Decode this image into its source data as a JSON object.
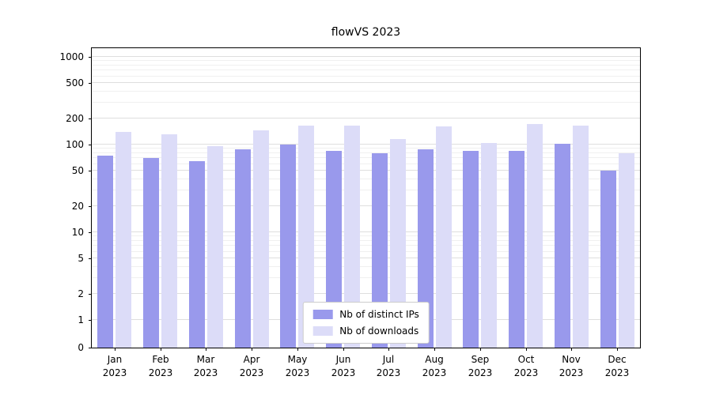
{
  "chart_data": {
    "type": "bar",
    "title": "flowVS 2023",
    "categories": [
      "Jan",
      "Feb",
      "Mar",
      "Apr",
      "May",
      "Jun",
      "Jul",
      "Aug",
      "Sep",
      "Oct",
      "Nov",
      "Dec"
    ],
    "year_label": "2023",
    "series": [
      {
        "name": "Nb of distinct IPs",
        "color": "#9999ec",
        "values": [
          75,
          70,
          65,
          88,
          100,
          85,
          80,
          88,
          85,
          85,
          103,
          50
        ]
      },
      {
        "name": "Nb of downloads",
        "color": "#dcdcf8",
        "values": [
          140,
          130,
          95,
          145,
          165,
          165,
          115,
          160,
          105,
          170,
          165,
          80
        ]
      }
    ],
    "yscale": "symlog",
    "yticks": [
      0,
      1,
      2,
      5,
      10,
      20,
      50,
      100,
      200,
      500,
      1000
    ],
    "ylim": [
      0,
      1300
    ],
    "grid": true,
    "legend_position": "lower center"
  }
}
